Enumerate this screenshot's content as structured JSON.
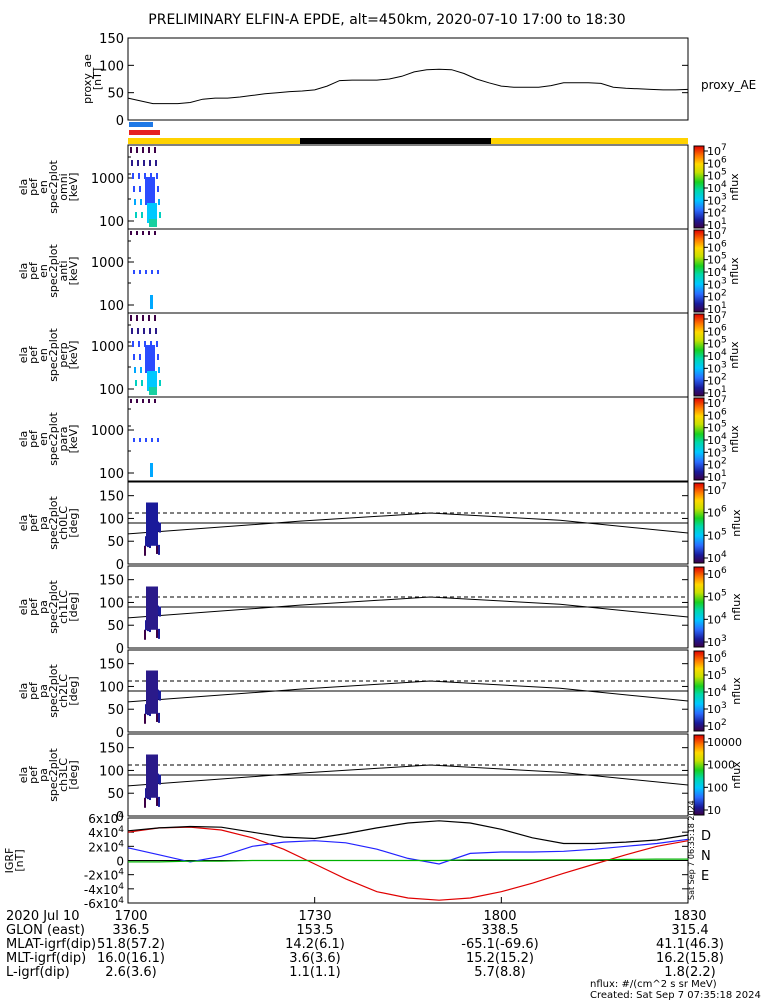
{
  "title": "PRELIMINARY ELFIN-A EPDE, alt=450km, 2020-07-10 17:00 to 18:30",
  "colors": {
    "bar_yellow": "#ffd200",
    "bar_black": "#000000",
    "bar_blue": "#1e78e6",
    "bar_red": "#e62020",
    "north": "#e00000",
    "east": "#2222ff",
    "down": "#00b000",
    "total": "#000000"
  },
  "spec_labels": [
    "ela\npef\nen\nspec2plot\nomni\n[keV]",
    "ela\npef\nen\nspec2plot\nanti\n[keV]",
    "ela\npef\nen\nspec2plot\nperp\n[keV]",
    "ela\npef\nen\nspec2plot\npara\n[keV]"
  ],
  "pa_labels": [
    "ela\npef\npa\nspec2plot\nch0LC\n[deg]",
    "ela\npef\npa\nspec2plot\nch1LC\n[deg]",
    "ela\npef\npa\nspec2plot\nch2LC\n[deg]",
    "ela\npef\npa\nspec2plot\nch3LC\n[deg]"
  ],
  "spec_cbar": {
    "label": "nflux",
    "ticks": [
      "10^7",
      "10^6",
      "10^5",
      "10^4",
      "10^3",
      "10^2",
      "10^1"
    ]
  },
  "pa_cbars": [
    {
      "label": "nflux",
      "ticks": [
        "10^7",
        "10^6",
        "10^5",
        "10^4"
      ]
    },
    {
      "label": "nflux",
      "ticks": [
        "10^6",
        "10^5",
        "10^4",
        "10^3"
      ]
    },
    {
      "label": "nflux",
      "ticks": [
        "10^6",
        "10^5",
        "10^4",
        "10^3",
        "10^2"
      ]
    },
    {
      "label": "nflux",
      "ticks": [
        "10000",
        "1000",
        "100",
        "10"
      ]
    }
  ],
  "chart_data": [
    {
      "type": "line",
      "panel": "proxy_ae",
      "ylabel": "proxy_ae\n[nT]",
      "legend": "proxy_AE",
      "ylim": [
        0,
        150
      ],
      "yticks": [
        "0",
        "50",
        "100",
        "150"
      ],
      "x": [
        "17:00",
        "17:02",
        "17:04",
        "17:06",
        "17:08",
        "17:10",
        "17:12",
        "17:14",
        "17:16",
        "17:18",
        "17:20",
        "17:22",
        "17:24",
        "17:26",
        "17:28",
        "17:30",
        "17:32",
        "17:34",
        "17:36",
        "17:38",
        "17:40",
        "17:42",
        "17:44",
        "17:46",
        "17:48",
        "17:50",
        "17:52",
        "17:54",
        "17:56",
        "17:58",
        "18:00",
        "18:02",
        "18:04",
        "18:06",
        "18:08",
        "18:10",
        "18:12",
        "18:14",
        "18:16",
        "18:18",
        "18:20",
        "18:22",
        "18:24",
        "18:26",
        "18:28",
        "18:30"
      ],
      "y": [
        40,
        35,
        30,
        30,
        30,
        32,
        38,
        40,
        40,
        42,
        45,
        48,
        50,
        52,
        53,
        55,
        62,
        72,
        73,
        73,
        73,
        75,
        80,
        88,
        92,
        93,
        92,
        85,
        75,
        68,
        62,
        60,
        60,
        60,
        63,
        68,
        68,
        68,
        67,
        60,
        58,
        57,
        56,
        55,
        55,
        56
      ]
    },
    {
      "type": "heatmap",
      "panel": "spectrograms",
      "ylabel": "[keV]",
      "yscale": "log",
      "yticks": [
        "100",
        "1000"
      ],
      "panels": [
        "omni",
        "anti",
        "perp",
        "para"
      ]
    },
    {
      "type": "heatmap",
      "panel": "pitch_angle",
      "ylabel": "[deg]",
      "ylim": [
        0,
        180
      ],
      "yticks": [
        "0",
        "50",
        "100",
        "150"
      ],
      "loss_cone_solid_deg": [
        68,
        80,
        94,
        105,
        112,
        98,
        80,
        68
      ],
      "loss_cone_dashed_deg": 112,
      "horizontal_line_deg": 90,
      "panels": [
        "ch0LC",
        "ch1LC",
        "ch2LC",
        "ch3LC"
      ]
    },
    {
      "type": "line",
      "panel": "IGRF",
      "ylabel": "IGRF\n[nT]",
      "ylim": [
        -60000,
        60000
      ],
      "yticks": [
        "-6x10^4",
        "-4x10^4",
        "-2x10^4",
        "0",
        "2x10^4",
        "4x10^4",
        "6x10^4"
      ],
      "legend": [
        "D",
        "N",
        "E"
      ],
      "series": [
        {
          "name": "D",
          "color": "#e00000",
          "x": [
            "17:00",
            "17:05",
            "17:10",
            "17:15",
            "17:20",
            "17:25",
            "17:30",
            "17:35",
            "17:40",
            "17:45",
            "17:50",
            "17:55",
            "18:00",
            "18:05",
            "18:10",
            "18:15",
            "18:20",
            "18:25",
            "18:30"
          ],
          "y": [
            40000,
            46000,
            47000,
            43000,
            32000,
            16000,
            -5000,
            -26000,
            -44000,
            -53000,
            -56000,
            -53000,
            -44000,
            -32000,
            -18000,
            -5000,
            8000,
            20000,
            28000
          ]
        },
        {
          "name": "N",
          "color": "#2222ff",
          "x": [
            "17:00",
            "17:05",
            "17:10",
            "17:15",
            "17:20",
            "17:25",
            "17:30",
            "17:35",
            "17:40",
            "17:45",
            "17:50",
            "17:55",
            "18:00",
            "18:05",
            "18:10",
            "18:15",
            "18:20",
            "18:25",
            "18:30"
          ],
          "y": [
            18000,
            8000,
            -2000,
            6000,
            20000,
            26000,
            28000,
            25000,
            16000,
            3000,
            -5000,
            10000,
            12000,
            12000,
            13000,
            16000,
            20000,
            24000,
            30000
          ]
        },
        {
          "name": "E",
          "color": "#00b000",
          "x": [
            "17:00",
            "17:05",
            "17:10",
            "17:15",
            "17:20",
            "17:25",
            "17:30",
            "17:35",
            "17:40",
            "17:45",
            "17:50",
            "17:55",
            "18:00",
            "18:05",
            "18:10",
            "18:15",
            "18:20",
            "18:25",
            "18:30"
          ],
          "y": [
            -2000,
            -2000,
            -1000,
            -1000,
            0,
            0,
            0,
            0,
            0,
            0,
            0,
            1000,
            1000,
            1000,
            1000,
            1000,
            1500,
            2000,
            2000
          ]
        },
        {
          "name": "total",
          "color": "#000000",
          "x": [
            "17:00",
            "17:05",
            "17:10",
            "17:15",
            "17:20",
            "17:25",
            "17:30",
            "17:35",
            "17:40",
            "17:45",
            "17:50",
            "17:55",
            "18:00",
            "18:05",
            "18:10",
            "18:15",
            "18:20",
            "18:25",
            "18:30"
          ],
          "y": [
            42000,
            46000,
            48000,
            47000,
            40000,
            33000,
            31000,
            38000,
            46000,
            53000,
            56000,
            53000,
            44000,
            32000,
            24000,
            24000,
            26000,
            29000,
            36000
          ]
        }
      ]
    }
  ],
  "time_axis": {
    "tick_labels": [
      "1700",
      "1730",
      "1800",
      "1830"
    ],
    "rows": [
      {
        "label": "2020 Jul 10",
        "values": [
          "1700",
          "1730",
          "1800",
          "1830"
        ]
      },
      {
        "label": "GLON (east)",
        "values": [
          "336.5",
          "153.5",
          "338.5",
          "315.4"
        ]
      },
      {
        "label": "MLAT-igrf(dip)",
        "values": "51.8(57.2)|14.2(6.1)|-65.1(-69.6)|41.1(46.3)"
      },
      {
        "label": "MLT-igrf(dip)",
        "values": "16.0(16.1)|3.6(3.6)|15.2(15.2)|16.2(15.8)"
      },
      {
        "label": "L-igrf(dip)",
        "values": "2.6(3.6)|1.1(1.1)|5.7(8.8)|1.8(2.2)"
      }
    ]
  },
  "footer": {
    "units": "nflux: #/(cm^2 s sr MeV)",
    "created": "Created: Sat Sep  7 07:35:18 2024",
    "side_stamp": "Sat Sep  7 06:35:18 2024"
  }
}
